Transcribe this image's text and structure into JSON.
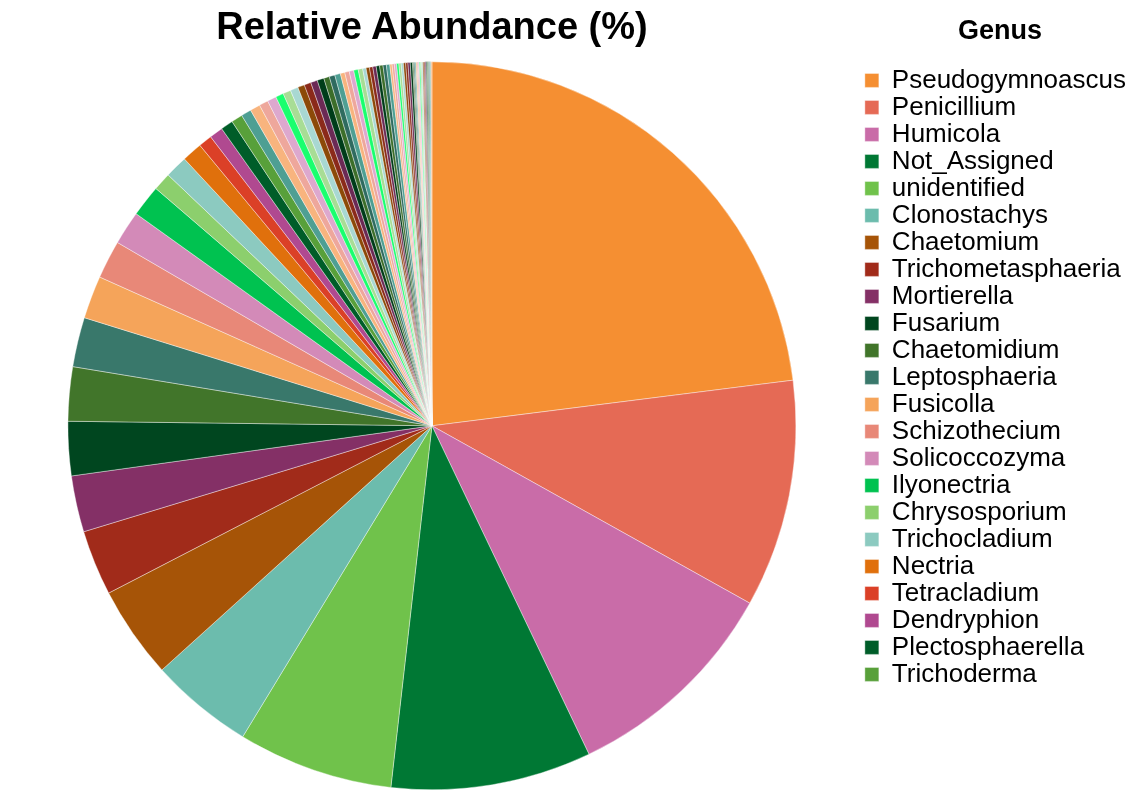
{
  "chart_data": {
    "type": "pie",
    "title": "Relative Abundance (%)",
    "legend_title": "Genus",
    "legend": "right",
    "categories": [
      "Pseudogymnoascus",
      "Penicillium",
      "Humicola",
      "Not_Assigned",
      "unidentified",
      "Clonostachys",
      "Chaetomium",
      "Trichometasphaeria",
      "Mortierella",
      "Fusarium",
      "Chaetomidium",
      "Leptosphaeria",
      "Fusicolla",
      "Schizothecium",
      "Solicoccozyma",
      "Ilyonectria",
      "Chrysosporium",
      "Trichocladium",
      "Nectria",
      "Tetracladium",
      "Dendryphion",
      "Plectosphaerella",
      "Trichoderma",
      null,
      null,
      null,
      null,
      null,
      null,
      null,
      null,
      null,
      null,
      null,
      null,
      null,
      null,
      null,
      null,
      null,
      null,
      null,
      null,
      null,
      null,
      null,
      null,
      null,
      null,
      null,
      null,
      null,
      null,
      null,
      null,
      null,
      null,
      null,
      null,
      null,
      null,
      null,
      null,
      null,
      null,
      null,
      null,
      null,
      null,
      null,
      null,
      null,
      null,
      null,
      null,
      null,
      null
    ],
    "values": [
      23,
      10.1,
      9.8,
      8.9,
      6.9,
      4.6,
      4.1,
      2.9,
      2.5,
      2.4,
      2.4,
      2.2,
      1.9,
      1.7,
      1.5,
      1.4,
      0.8,
      1.0,
      0.9,
      0.6,
      0.6,
      0.55,
      0.5,
      0.45,
      0.45,
      0.4,
      0.4,
      0.35,
      0.35,
      0.35,
      0.3,
      0.3,
      0.3,
      0.3,
      0.25,
      0.25,
      0.25,
      0.2,
      0.2,
      0.2,
      0.2,
      0.2,
      0.15,
      0.15,
      0.15,
      0.15,
      0.15,
      0.15,
      0.15,
      0.15,
      0.1,
      0.1,
      0.1,
      0.1,
      0.1,
      0.1,
      0.1,
      0.1,
      0.1,
      0.1,
      0.05,
      0.05,
      0.05,
      0.05,
      0.05,
      0.05,
      0.05,
      0.05,
      0.05,
      0.05,
      0.05,
      0.05,
      0.05,
      0.05,
      0.05,
      0.05,
      0.05
    ],
    "colors": [
      "#f58f32",
      "#e56a55",
      "#c96ca8",
      "#007834",
      "#70c24b",
      "#6cbcad",
      "#a65407",
      "#a12b1a",
      "#843066",
      "#00461f",
      "#41752a",
      "#39786b",
      "#f5a45a",
      "#e88878",
      "#d38ab8",
      "#00c250",
      "#8ccf6d",
      "#8ccac0",
      "#e0700c",
      "#db4027",
      "#b04990",
      "#005d29",
      "#58a03a",
      "#4e9f93",
      "#f8b47e",
      "#eea79c",
      "#dda8ce",
      "#19ff6e",
      "#a8dd95",
      "#a8d8d2",
      "#8c4a08",
      "#8b2a1a",
      "#6b2a55",
      "#003d1a",
      "#3c6e2a",
      "#2f6b60",
      "#4e9f93",
      "#f8b47e",
      "#eea79c",
      "#dda8ce",
      "#19ff6e",
      "#a8dd95",
      "#a8d8d2",
      "#8c4a08",
      "#8b2a1a",
      "#6b2a55",
      "#003d1a",
      "#3c6e2a",
      "#2f6b60",
      "#4e9f93",
      "#f8b47e",
      "#eea79c",
      "#dda8ce",
      "#19ff6e",
      "#a8dd95",
      "#a8d8d2",
      "#8c4a08",
      "#8b2a1a",
      "#6b2a55",
      "#003d1a",
      "#3c6e2a",
      "#2f6b60",
      "#4e9f93",
      "#f8b47e",
      "#eea79c",
      "#dda8ce",
      "#19ff6e",
      "#a8dd95",
      "#a8d8d2",
      "#8c4a08",
      "#8b2a1a",
      "#6b2a55",
      "#003d1a",
      "#3c6e2a",
      "#2f6b60",
      "#4e9f93",
      "#f8b47e"
    ]
  }
}
